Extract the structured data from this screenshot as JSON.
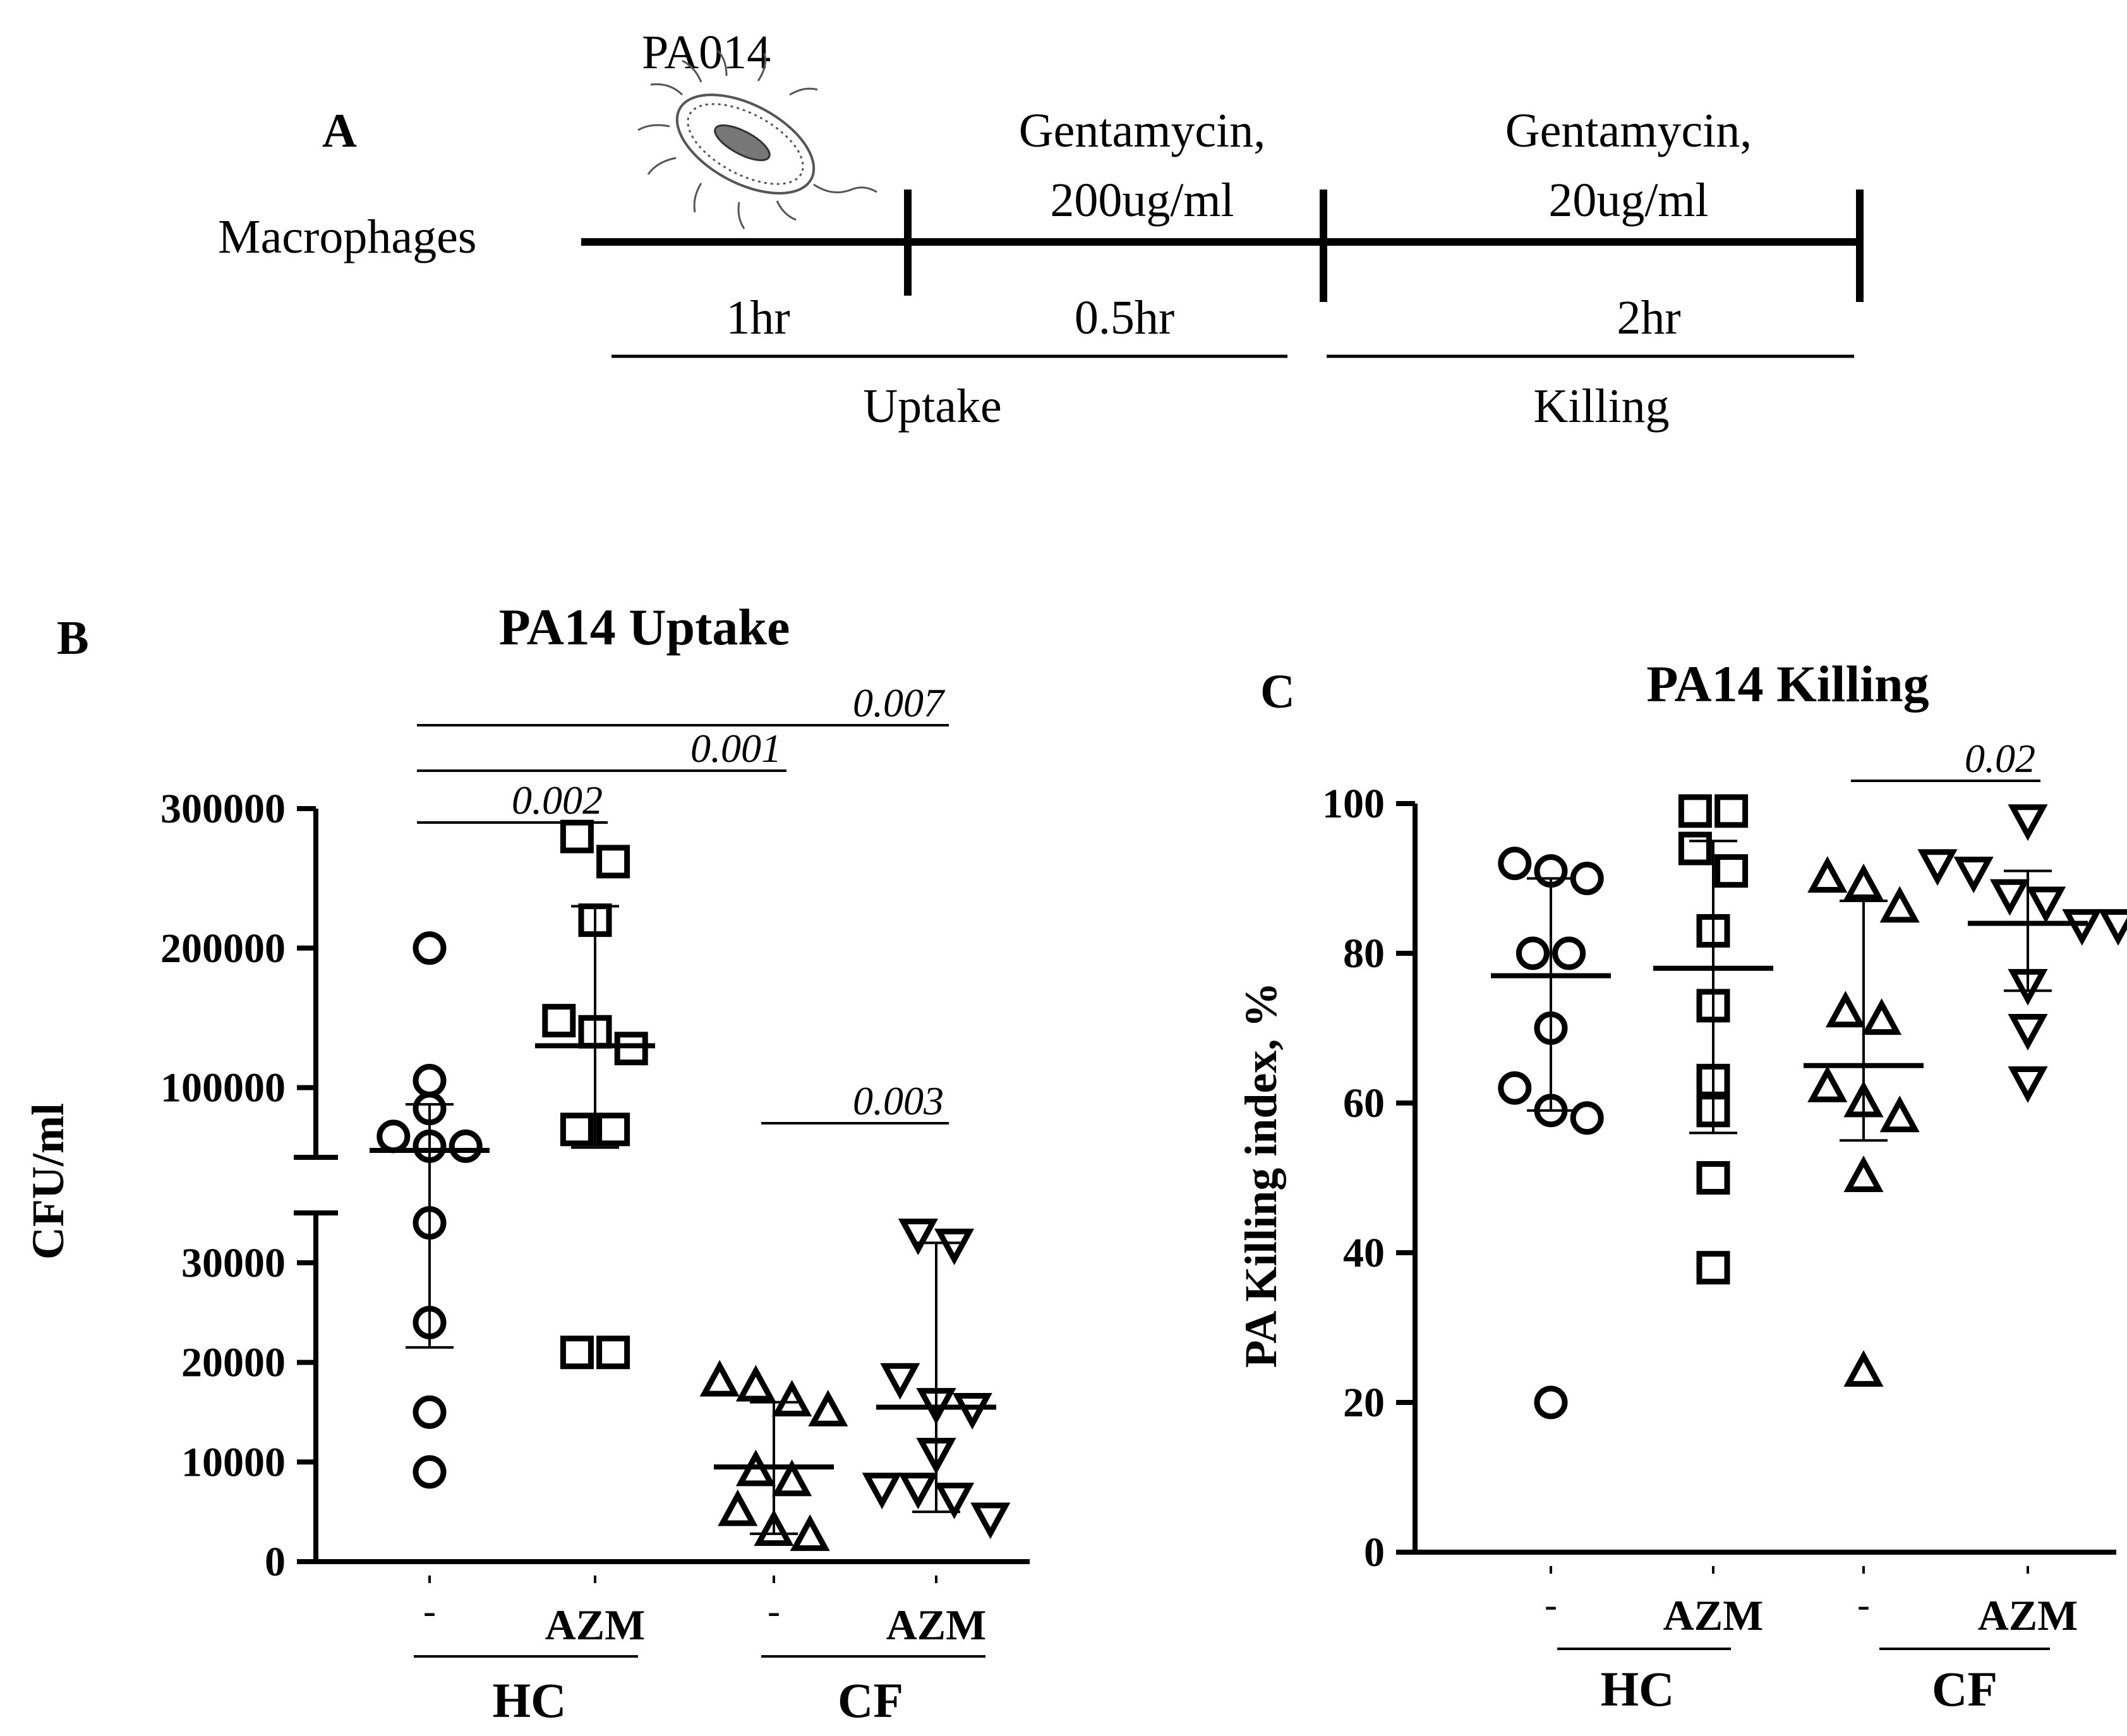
{
  "panel_a": {
    "letter": "A",
    "start_label": "Macrophages",
    "bacterium_label": "PA014",
    "step2_label_line1": "Gentamycin,",
    "step2_label_line2": "200ug/ml",
    "step3_label_line1": "Gentamycin,",
    "step3_label_line2": "20ug/ml",
    "durations": [
      "1hr",
      "0.5hr",
      "2hr"
    ],
    "phases": [
      "Uptake",
      "Killing"
    ]
  },
  "chart_data": [
    {
      "panel": "B",
      "type": "scatter",
      "title": "PA14 Uptake",
      "ylabel": "CFU/ml",
      "axis_break": {
        "lower_range": [
          0,
          35000
        ],
        "upper_range": [
          50000,
          300000
        ]
      },
      "lower_ticks": [
        "0",
        "10000",
        "20000",
        "30000"
      ],
      "upper_ticks": [
        "100000",
        "200000",
        "300000"
      ],
      "categories": [
        "-",
        "AZM",
        "-",
        "AZM"
      ],
      "group_labels": [
        "HC",
        "CF"
      ],
      "series": [
        {
          "name": "HC -",
          "marker": "circle",
          "values": [
            200000,
            105000,
            85000,
            65000,
            58000,
            58000,
            34000,
            24000,
            15000,
            9000
          ],
          "mean": 55000,
          "sd": [
            21500,
            88000
          ]
        },
        {
          "name": "HC AZM",
          "marker": "square",
          "values": [
            280000,
            262000,
            220000,
            148000,
            140000,
            128000,
            70000,
            70000,
            21000,
            21000
          ],
          "mean": 130000,
          "sd": [
            57000,
            230000
          ]
        },
        {
          "name": "CF -",
          "marker": "triangle-up",
          "values": [
            18000,
            17500,
            16000,
            15000,
            9000,
            8000,
            5000,
            3000,
            2500
          ],
          "mean": 9500,
          "sd": [
            2800,
            16000
          ]
        },
        {
          "name": "CF AZM",
          "marker": "triangle-down",
          "values": [
            33000,
            32000,
            18500,
            16000,
            15500,
            11000,
            7500,
            7500,
            6500,
            4500
          ],
          "mean": 15500,
          "sd": [
            5000,
            32000
          ]
        }
      ],
      "comparisons": [
        {
          "from": 0,
          "to": 1,
          "p": "0.002"
        },
        {
          "from": 0,
          "to": 2,
          "p": "0.001"
        },
        {
          "from": 0,
          "to": 3,
          "p": "0.007"
        },
        {
          "from": 2,
          "to": 3,
          "p": "0.003"
        }
      ]
    },
    {
      "panel": "C",
      "type": "scatter",
      "title": "PA14 Killing",
      "ylabel": "PA Killing index, %",
      "ylim": [
        0,
        100
      ],
      "yticks": [
        "0",
        "20",
        "40",
        "60",
        "80",
        "100"
      ],
      "categories": [
        "-",
        "AZM",
        "-",
        "AZM"
      ],
      "group_labels": [
        "HC",
        "CF"
      ],
      "series": [
        {
          "name": "HC -",
          "marker": "circle",
          "values": [
            92,
            91,
            90,
            80,
            80,
            70,
            62,
            59,
            58,
            20
          ],
          "mean": 77,
          "sd": [
            59,
            90
          ]
        },
        {
          "name": "HC AZM",
          "marker": "square",
          "values": [
            99,
            99,
            94,
            91,
            83,
            73,
            63,
            59,
            50,
            38
          ],
          "mean": 78,
          "sd": [
            56,
            95
          ]
        },
        {
          "name": "CF -",
          "marker": "triangle-up",
          "values": [
            90,
            89,
            86,
            72,
            71,
            62,
            60,
            58,
            50,
            24
          ],
          "mean": 65,
          "sd": [
            55,
            87
          ]
        },
        {
          "name": "CF AZM",
          "marker": "triangle-down",
          "values": [
            98,
            92,
            91,
            88,
            87,
            84,
            84,
            76,
            70,
            63
          ],
          "mean": 84,
          "sd": [
            75,
            91
          ]
        }
      ],
      "comparisons": [
        {
          "from": 2,
          "to": 3,
          "p": "0.02"
        }
      ]
    }
  ]
}
